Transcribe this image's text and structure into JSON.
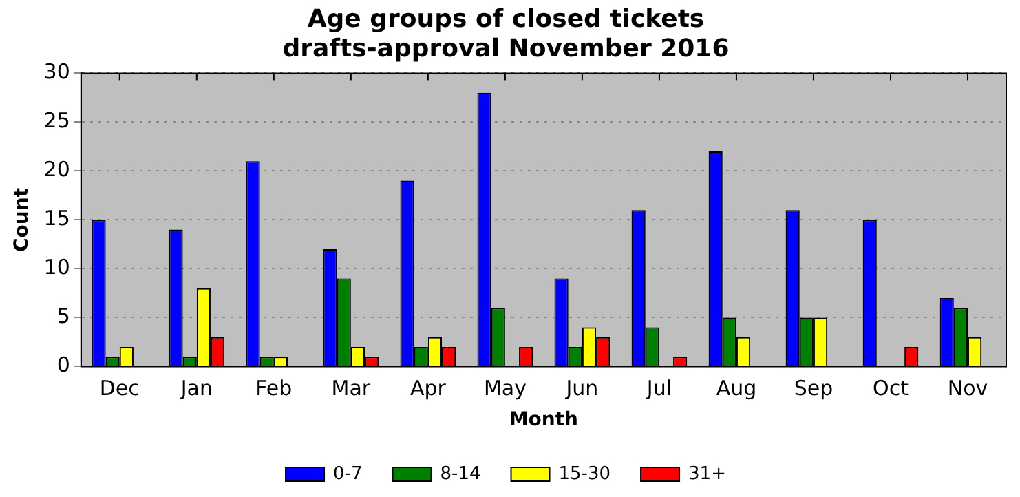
{
  "chart_data": {
    "type": "bar",
    "title": "Age groups of closed tickets",
    "subtitle": "drafts-approval November 2016",
    "xlabel": "Month",
    "ylabel": "Count",
    "categories": [
      "Dec",
      "Jan",
      "Feb",
      "Mar",
      "Apr",
      "May",
      "Jun",
      "Jul",
      "Aug",
      "Sep",
      "Oct",
      "Nov"
    ],
    "series": [
      {
        "name": "0-7",
        "color": "#0000ff",
        "values": [
          15,
          14,
          21,
          12,
          19,
          28,
          9,
          16,
          22,
          16,
          15,
          7
        ]
      },
      {
        "name": "8-14",
        "color": "#008000",
        "values": [
          1,
          1,
          1,
          9,
          2,
          6,
          2,
          4,
          5,
          5,
          0,
          6
        ]
      },
      {
        "name": "15-30",
        "color": "#ffff00",
        "values": [
          2,
          8,
          1,
          2,
          3,
          0,
          4,
          0,
          3,
          5,
          0,
          3
        ]
      },
      {
        "name": "31+",
        "color": "#ff0000",
        "values": [
          0,
          3,
          0,
          1,
          2,
          2,
          3,
          1,
          0,
          0,
          2,
          0
        ]
      }
    ],
    "ylim": [
      0,
      30
    ],
    "yticks": [
      0,
      5,
      10,
      15,
      20,
      25,
      30
    ],
    "grid": "y",
    "legend": "bottom"
  }
}
